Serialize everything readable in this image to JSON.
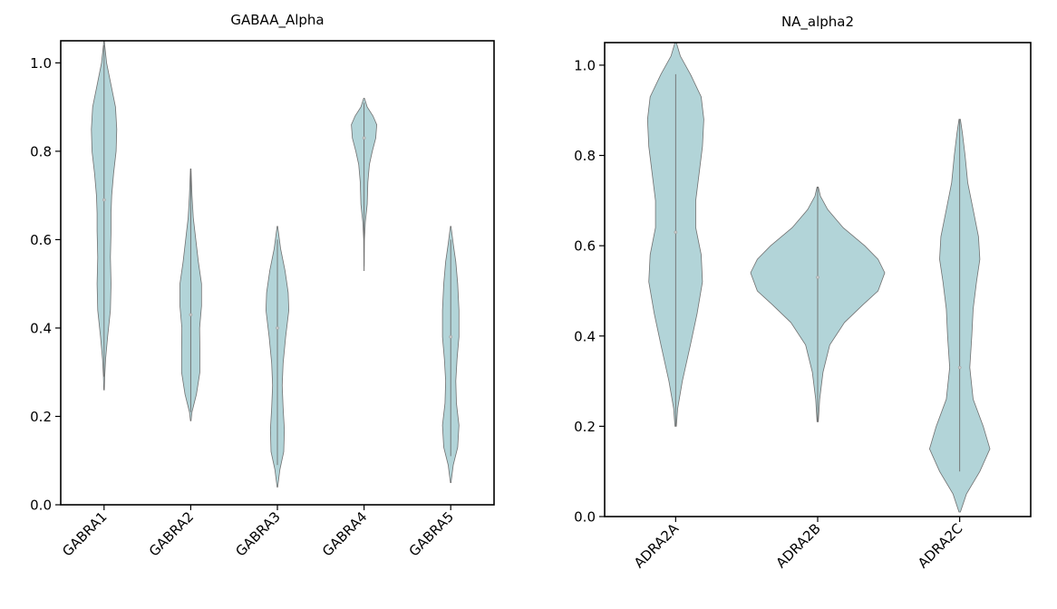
{
  "colors": {
    "violin_fill": "#b2d4d8",
    "violin_edge": "#707070",
    "median_marker": "#c8c8c8",
    "axes": "#000000",
    "background": "#ffffff"
  },
  "chart_data": [
    {
      "type": "violin",
      "title": "GABAA_Alpha",
      "xlabel": "",
      "ylabel": "",
      "ylim": [
        0.0,
        1.05
      ],
      "yticks": [
        0.0,
        0.2,
        0.4,
        0.6,
        0.8,
        1.0
      ],
      "ytick_labels": [
        "0.0",
        "0.2",
        "0.4",
        "0.6",
        "0.8",
        "1.0"
      ],
      "grid": false,
      "legend": "none",
      "categories": [
        "GABRA1",
        "GABRA2",
        "GABRA3",
        "GABRA4",
        "GABRA5"
      ],
      "violins": [
        {
          "label": "GABRA1",
          "median": 0.69,
          "whisker": [
            0.29,
            1.04
          ],
          "density": [
            [
              0.26,
              0.02
            ],
            [
              0.29,
              0.05
            ],
            [
              0.33,
              0.12
            ],
            [
              0.38,
              0.28
            ],
            [
              0.44,
              0.5
            ],
            [
              0.5,
              0.55
            ],
            [
              0.56,
              0.5
            ],
            [
              0.62,
              0.55
            ],
            [
              0.66,
              0.55
            ],
            [
              0.7,
              0.6
            ],
            [
              0.75,
              0.75
            ],
            [
              0.8,
              0.95
            ],
            [
              0.85,
              1.0
            ],
            [
              0.9,
              0.9
            ],
            [
              0.95,
              0.55
            ],
            [
              1.0,
              0.2
            ],
            [
              1.04,
              0.05
            ],
            [
              1.05,
              0.02
            ]
          ]
        },
        {
          "label": "GABRA2",
          "median": 0.43,
          "whisker": [
            0.21,
            0.76
          ],
          "density": [
            [
              0.19,
              0.02
            ],
            [
              0.21,
              0.1
            ],
            [
              0.25,
              0.45
            ],
            [
              0.3,
              0.72
            ],
            [
              0.35,
              0.72
            ],
            [
              0.4,
              0.7
            ],
            [
              0.45,
              0.85
            ],
            [
              0.5,
              0.85
            ],
            [
              0.55,
              0.6
            ],
            [
              0.6,
              0.4
            ],
            [
              0.65,
              0.2
            ],
            [
              0.7,
              0.1
            ],
            [
              0.76,
              0.02
            ]
          ]
        },
        {
          "label": "GABRA3",
          "median": 0.4,
          "whisker": [
            0.09,
            0.6
          ],
          "density": [
            [
              0.04,
              0.02
            ],
            [
              0.08,
              0.2
            ],
            [
              0.12,
              0.5
            ],
            [
              0.17,
              0.55
            ],
            [
              0.22,
              0.45
            ],
            [
              0.27,
              0.38
            ],
            [
              0.32,
              0.45
            ],
            [
              0.38,
              0.65
            ],
            [
              0.44,
              0.9
            ],
            [
              0.48,
              0.85
            ],
            [
              0.53,
              0.6
            ],
            [
              0.58,
              0.25
            ],
            [
              0.63,
              0.02
            ]
          ]
        },
        {
          "label": "GABRA4",
          "median": 0.83,
          "whisker": [
            0.54,
            0.91
          ],
          "density": [
            [
              0.53,
              0.01
            ],
            [
              0.6,
              0.03
            ],
            [
              0.64,
              0.1
            ],
            [
              0.68,
              0.25
            ],
            [
              0.73,
              0.3
            ],
            [
              0.77,
              0.42
            ],
            [
              0.8,
              0.65
            ],
            [
              0.83,
              0.92
            ],
            [
              0.86,
              1.0
            ],
            [
              0.88,
              0.7
            ],
            [
              0.9,
              0.25
            ],
            [
              0.92,
              0.03
            ]
          ]
        },
        {
          "label": "GABRA5",
          "median": 0.38,
          "whisker": [
            0.11,
            0.6
          ],
          "density": [
            [
              0.05,
              0.02
            ],
            [
              0.09,
              0.2
            ],
            [
              0.13,
              0.55
            ],
            [
              0.18,
              0.65
            ],
            [
              0.23,
              0.45
            ],
            [
              0.28,
              0.4
            ],
            [
              0.33,
              0.5
            ],
            [
              0.38,
              0.65
            ],
            [
              0.44,
              0.65
            ],
            [
              0.5,
              0.55
            ],
            [
              0.55,
              0.4
            ],
            [
              0.59,
              0.2
            ],
            [
              0.63,
              0.02
            ]
          ]
        }
      ]
    },
    {
      "type": "violin",
      "title": "NA_alpha2",
      "xlabel": "",
      "ylabel": "",
      "ylim": [
        0.0,
        1.05
      ],
      "yticks": [
        0.0,
        0.2,
        0.4,
        0.6,
        0.8,
        1.0
      ],
      "ytick_labels": [
        "0.0",
        "0.2",
        "0.4",
        "0.6",
        "0.8",
        "1.0"
      ],
      "grid": false,
      "legend": "none",
      "categories": [
        "ADRA2A",
        "ADRA2B",
        "ADRA2C"
      ],
      "violins": [
        {
          "label": "ADRA2A",
          "median": 0.63,
          "whisker": [
            0.2,
            0.98
          ],
          "density": [
            [
              0.2,
              0.01
            ],
            [
              0.24,
              0.03
            ],
            [
              0.3,
              0.1
            ],
            [
              0.38,
              0.22
            ],
            [
              0.45,
              0.32
            ],
            [
              0.52,
              0.4
            ],
            [
              0.58,
              0.38
            ],
            [
              0.64,
              0.3
            ],
            [
              0.7,
              0.3
            ],
            [
              0.76,
              0.35
            ],
            [
              0.82,
              0.4
            ],
            [
              0.88,
              0.42
            ],
            [
              0.93,
              0.38
            ],
            [
              0.98,
              0.22
            ],
            [
              1.02,
              0.07
            ],
            [
              1.05,
              0.01
            ]
          ]
        },
        {
          "label": "ADRA2B",
          "median": 0.53,
          "whisker": [
            0.21,
            0.73
          ],
          "density": [
            [
              0.21,
              0.01
            ],
            [
              0.26,
              0.03
            ],
            [
              0.32,
              0.08
            ],
            [
              0.38,
              0.18
            ],
            [
              0.43,
              0.4
            ],
            [
              0.47,
              0.68
            ],
            [
              0.5,
              0.9
            ],
            [
              0.54,
              1.0
            ],
            [
              0.57,
              0.9
            ],
            [
              0.6,
              0.7
            ],
            [
              0.64,
              0.38
            ],
            [
              0.68,
              0.15
            ],
            [
              0.71,
              0.04
            ],
            [
              0.73,
              0.01
            ]
          ]
        },
        {
          "label": "ADRA2C",
          "median": 0.33,
          "whisker": [
            0.1,
            0.88
          ],
          "density": [
            [
              0.01,
              0.01
            ],
            [
              0.05,
              0.1
            ],
            [
              0.1,
              0.3
            ],
            [
              0.15,
              0.45
            ],
            [
              0.2,
              0.35
            ],
            [
              0.26,
              0.2
            ],
            [
              0.33,
              0.15
            ],
            [
              0.4,
              0.18
            ],
            [
              0.46,
              0.2
            ],
            [
              0.52,
              0.25
            ],
            [
              0.57,
              0.3
            ],
            [
              0.62,
              0.28
            ],
            [
              0.68,
              0.2
            ],
            [
              0.74,
              0.12
            ],
            [
              0.8,
              0.08
            ],
            [
              0.85,
              0.04
            ],
            [
              0.88,
              0.01
            ]
          ]
        }
      ]
    }
  ]
}
